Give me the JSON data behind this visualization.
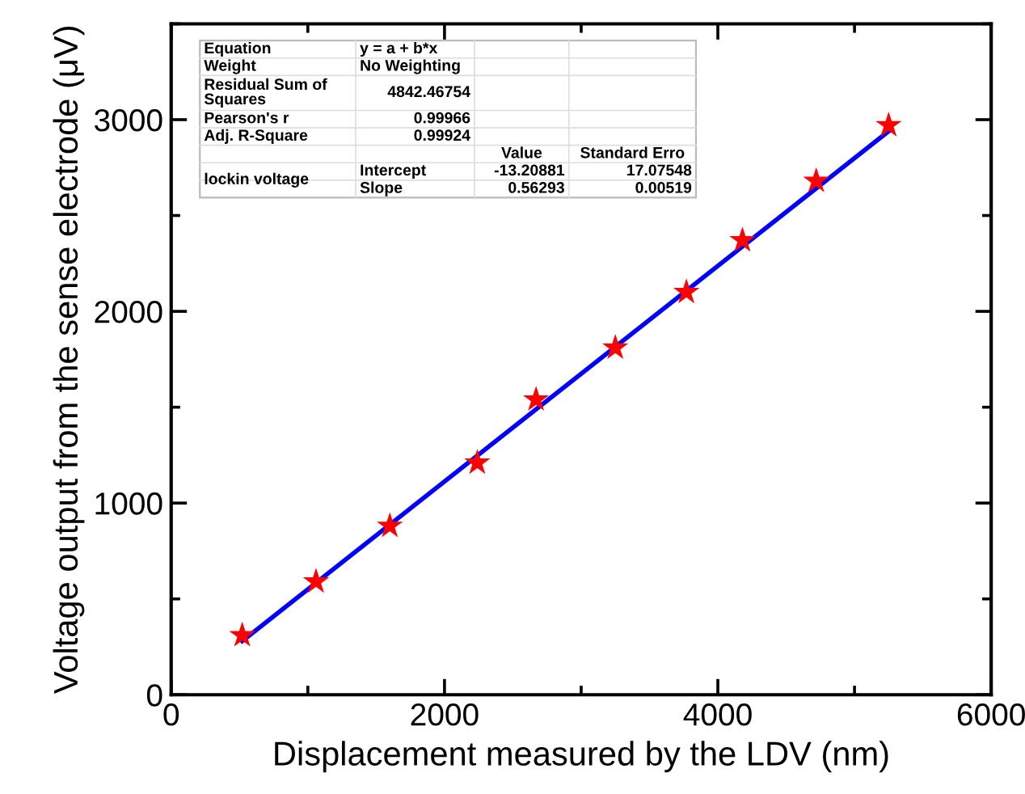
{
  "chart_data": {
    "type": "scatter",
    "xlabel": "Displacement measured by the LDV (nm)",
    "ylabel": "Voltage output from the sense electrode (μV)",
    "xlim": [
      0,
      6000
    ],
    "ylim": [
      0,
      3500
    ],
    "xticks": [
      0,
      2000,
      4000,
      6000
    ],
    "yticks": [
      0,
      1000,
      2000,
      3000
    ],
    "grid": false,
    "legend": false,
    "series": [
      {
        "color": "#ff0000",
        "marker": "star",
        "x": [
          520,
          1060,
          1600,
          2240,
          2670,
          3250,
          3770,
          4180,
          4720,
          5250
        ],
        "values": [
          310,
          590,
          880,
          1210,
          1540,
          1810,
          2100,
          2370,
          2680,
          2970
        ]
      },
      {
        "type": "line",
        "color": "#0000ff",
        "marker": "none",
        "line_style": "solid",
        "x": [
          520,
          5250
        ],
        "values": [
          280,
          2940
        ]
      }
    ],
    "annotations": [
      "Equation",
      "y = a + b*x",
      "Weight",
      "No Weighting",
      "Residual Sum of\nSquares",
      "4842.46754",
      "Pearson's r",
      "0.99966",
      "Adj. R-Square",
      "0.99924",
      "Value",
      "Standard Erro",
      "lockin voltage",
      "Intercept",
      "-13.20881",
      "17.07548",
      "Slope",
      "0.56293",
      "0.00519"
    ]
  }
}
